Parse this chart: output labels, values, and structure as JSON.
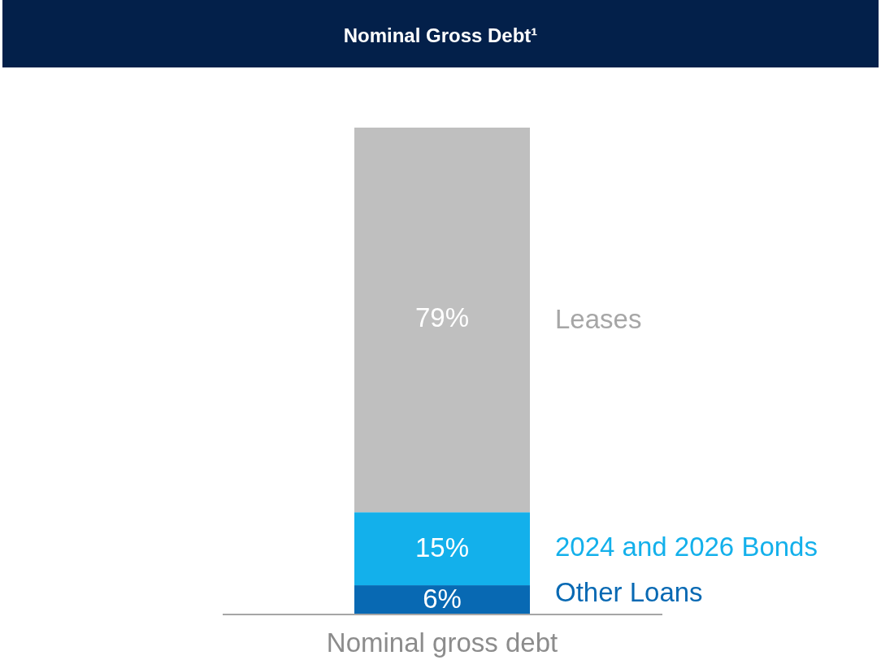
{
  "chart_data": {
    "type": "bar",
    "stacked": true,
    "title": "Nominal Gross Debt¹",
    "categories": [
      "Nominal gross debt"
    ],
    "series": [
      {
        "name": "Other Loans",
        "color": "#0869b3",
        "values": [
          6
        ],
        "value_labels": [
          "6%"
        ]
      },
      {
        "name": "2024 and 2026 Bonds",
        "color": "#13b0eb",
        "values": [
          15
        ],
        "value_labels": [
          "15%"
        ]
      },
      {
        "name": "Leases",
        "color": "#bfbfbf",
        "values": [
          79
        ],
        "value_labels": [
          "79%"
        ]
      }
    ],
    "legend": false
  }
}
